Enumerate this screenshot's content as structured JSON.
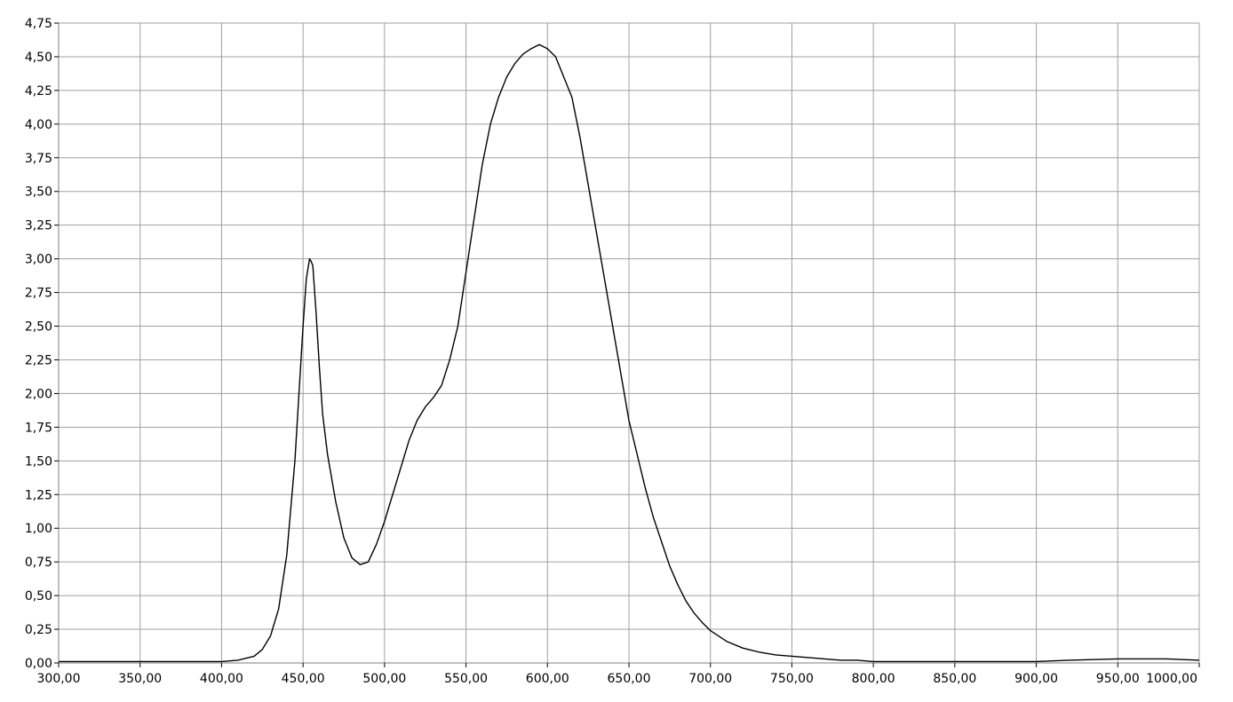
{
  "chart_data": {
    "type": "line",
    "title": "",
    "xlabel": "",
    "ylabel": "",
    "xlim": [
      300,
      1000
    ],
    "ylim": [
      0,
      4.75
    ],
    "grid": true,
    "colors": {
      "line": "#000000",
      "grid": "#a0a0a0",
      "plot_background": "#ffffff",
      "axis": "#7f7f7f"
    },
    "x_ticks": [
      300,
      350,
      400,
      450,
      500,
      550,
      600,
      650,
      700,
      750,
      800,
      850,
      900,
      950,
      1000
    ],
    "x_tick_labels": [
      "300,00",
      "350,00",
      "400,00",
      "450,00",
      "500,00",
      "550,00",
      "600,00",
      "650,00",
      "700,00",
      "750,00",
      "800,00",
      "850,00",
      "900,00",
      "950,00",
      "1000,00"
    ],
    "y_ticks": [
      0,
      0.25,
      0.5,
      0.75,
      1.0,
      1.25,
      1.5,
      1.75,
      2.0,
      2.25,
      2.5,
      2.75,
      3.0,
      3.25,
      3.5,
      3.75,
      4.0,
      4.25,
      4.5,
      4.75
    ],
    "y_tick_labels": [
      "0,00",
      "0,25",
      "0,50",
      "0,75",
      "1,00",
      "1,25",
      "1,50",
      "1,75",
      "2,00",
      "2,25",
      "2,50",
      "2,75",
      "3,00",
      "3,25",
      "3,50",
      "3,75",
      "4,00",
      "4,25",
      "4,50",
      "4,75"
    ],
    "series": [
      {
        "x": [
          300,
          350,
          400,
          410,
          420,
          425,
          430,
          435,
          440,
          445,
          448,
          450,
          452,
          454,
          455,
          456,
          458,
          460,
          462,
          465,
          470,
          475,
          480,
          485,
          490,
          495,
          500,
          505,
          510,
          515,
          520,
          525,
          530,
          535,
          540,
          545,
          550,
          555,
          560,
          565,
          570,
          575,
          580,
          585,
          590,
          595,
          600,
          605,
          610,
          615,
          620,
          625,
          630,
          635,
          640,
          645,
          650,
          655,
          660,
          665,
          670,
          675,
          680,
          685,
          690,
          695,
          700,
          710,
          720,
          730,
          740,
          750,
          760,
          770,
          780,
          790,
          800,
          820,
          850,
          880,
          900,
          920,
          950,
          980,
          1000
        ],
        "y": [
          0.01,
          0.01,
          0.01,
          0.02,
          0.05,
          0.1,
          0.2,
          0.4,
          0.8,
          1.5,
          2.1,
          2.5,
          2.85,
          3.0,
          2.98,
          2.95,
          2.6,
          2.2,
          1.85,
          1.55,
          1.2,
          0.93,
          0.78,
          0.73,
          0.75,
          0.88,
          1.05,
          1.25,
          1.45,
          1.65,
          1.8,
          1.9,
          1.97,
          2.06,
          2.25,
          2.5,
          2.9,
          3.3,
          3.7,
          4.0,
          4.2,
          4.35,
          4.45,
          4.52,
          4.56,
          4.59,
          4.56,
          4.5,
          4.35,
          4.2,
          3.9,
          3.55,
          3.2,
          2.85,
          2.5,
          2.15,
          1.8,
          1.55,
          1.3,
          1.08,
          0.9,
          0.72,
          0.58,
          0.46,
          0.37,
          0.3,
          0.24,
          0.16,
          0.11,
          0.08,
          0.06,
          0.05,
          0.04,
          0.03,
          0.02,
          0.02,
          0.01,
          0.01,
          0.01,
          0.01,
          0.01,
          0.02,
          0.03,
          0.03,
          0.02
        ]
      }
    ]
  }
}
